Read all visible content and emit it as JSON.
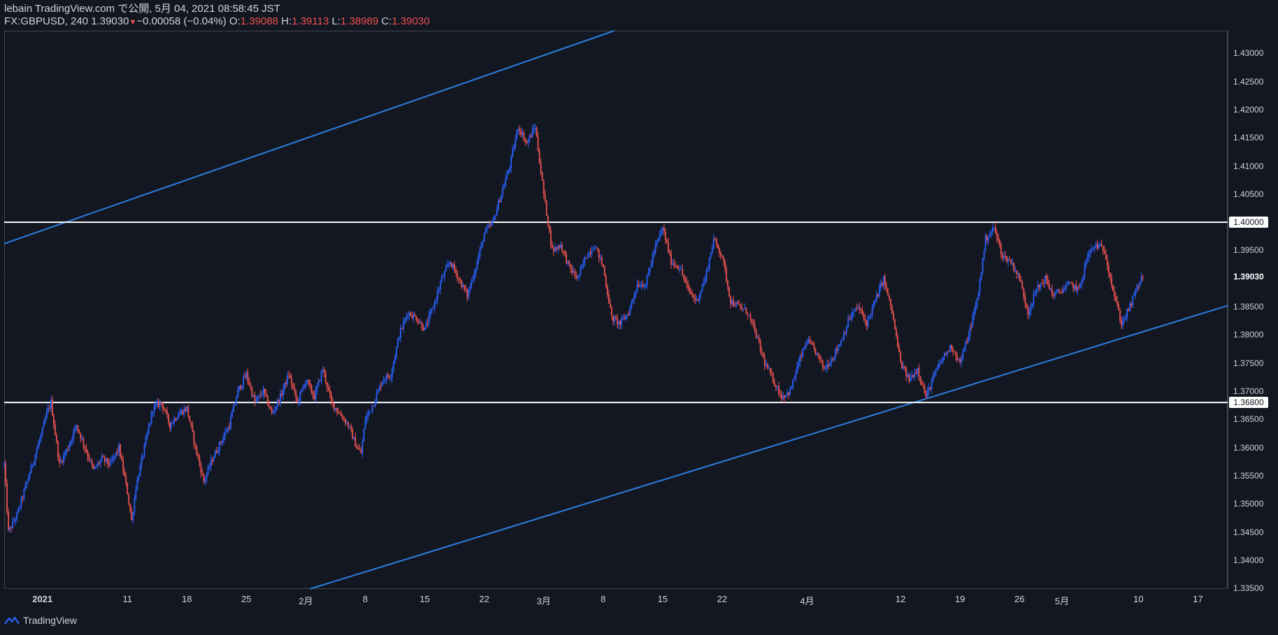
{
  "header": {
    "published": "lebain TradingView.com で公開, 5月 04, 2021 08:58:45 JST",
    "symbol": "FX:GBPUSD, 240 1.39030",
    "change": "−0.00058 (−0.04%)",
    "o_label": "O:",
    "o_value": "1.39088",
    "h_label": "H:",
    "h_value": "1.39113",
    "l_label": "L:",
    "l_value": "1.38989",
    "c_label": "C:",
    "c_value": "1.39030"
  },
  "footer": {
    "brand": "TradingView",
    "logo_icon": "tradingview-logo-icon"
  },
  "colors": {
    "background": "#131722",
    "up": "#2962ff",
    "down": "#ef5350",
    "line": "#2a7fe0",
    "hline": "#ffffff"
  },
  "chart_data": {
    "type": "candlestick",
    "symbol": "FX:GBPUSD",
    "interval": "240",
    "y_ticks": [
      "1.43000",
      "1.42500",
      "1.42000",
      "1.41500",
      "1.41000",
      "1.40500",
      "1.40000",
      "1.39500",
      "1.39030",
      "1.38500",
      "1.38000",
      "1.37500",
      "1.37000",
      "1.36800",
      "1.36500",
      "1.36000",
      "1.35500",
      "1.35000",
      "1.34500",
      "1.34000",
      "1.33500"
    ],
    "ylim": [
      1.3349,
      1.434
    ],
    "x_ticks": [
      {
        "label": "2021",
        "day": 0
      },
      {
        "label": "11",
        "day": 10
      },
      {
        "label": "18",
        "day": 17
      },
      {
        "label": "25",
        "day": 24
      },
      {
        "label": "2月",
        "day": 31
      },
      {
        "label": "8",
        "day": 38
      },
      {
        "label": "15",
        "day": 45
      },
      {
        "label": "22",
        "day": 52
      },
      {
        "label": "3月",
        "day": 59
      },
      {
        "label": "8",
        "day": 66
      },
      {
        "label": "15",
        "day": 73
      },
      {
        "label": "22",
        "day": 80
      },
      {
        "label": "4月",
        "day": 90
      },
      {
        "label": "12",
        "day": 101
      },
      {
        "label": "19",
        "day": 108
      },
      {
        "label": "26",
        "day": 115
      },
      {
        "label": "5月",
        "day": 120
      },
      {
        "label": "10",
        "day": 129
      },
      {
        "label": "17",
        "day": 136
      }
    ],
    "xlim": [
      -4.5,
      139.5
    ],
    "horizontal_levels": [
      {
        "price": 1.4,
        "label": "1.40000"
      },
      {
        "price": 1.368,
        "label": "1.36800"
      }
    ],
    "current_price": {
      "price": 1.3903,
      "label": "1.39030"
    },
    "trend_lines": [
      {
        "day1": -4.5,
        "price1": 1.3962,
        "day2": 67.3,
        "price2": 1.434
      },
      {
        "day1": 31.5,
        "price1": 1.3349,
        "day2": 139.5,
        "price2": 1.3852
      }
    ],
    "price_path": [
      [
        -4.5,
        1.357
      ],
      [
        -4,
        1.345
      ],
      [
        -3,
        1.348
      ],
      [
        -2,
        1.353
      ],
      [
        -1,
        1.358
      ],
      [
        0,
        1.363
      ],
      [
        0.5,
        1.366
      ],
      [
        1,
        1.368
      ],
      [
        2,
        1.357
      ],
      [
        3,
        1.36
      ],
      [
        4,
        1.364
      ],
      [
        5,
        1.36
      ],
      [
        6,
        1.356
      ],
      [
        7,
        1.358
      ],
      [
        8,
        1.357
      ],
      [
        9,
        1.36
      ],
      [
        10,
        1.352
      ],
      [
        10.5,
        1.347
      ],
      [
        11,
        1.353
      ],
      [
        12,
        1.36
      ],
      [
        13,
        1.367
      ],
      [
        14,
        1.368
      ],
      [
        15,
        1.364
      ],
      [
        16,
        1.366
      ],
      [
        17,
        1.367
      ],
      [
        18,
        1.36
      ],
      [
        19,
        1.354
      ],
      [
        20,
        1.358
      ],
      [
        21,
        1.361
      ],
      [
        22,
        1.364
      ],
      [
        23,
        1.37
      ],
      [
        24,
        1.373
      ],
      [
        25,
        1.368
      ],
      [
        26,
        1.37
      ],
      [
        27,
        1.366
      ],
      [
        28,
        1.369
      ],
      [
        29,
        1.373
      ],
      [
        30,
        1.368
      ],
      [
        31,
        1.372
      ],
      [
        32,
        1.369
      ],
      [
        33,
        1.374
      ],
      [
        34,
        1.368
      ],
      [
        35,
        1.366
      ],
      [
        36,
        1.364
      ],
      [
        37,
        1.36
      ],
      [
        37.5,
        1.359
      ],
      [
        38,
        1.365
      ],
      [
        39,
        1.368
      ],
      [
        40,
        1.372
      ],
      [
        41,
        1.373
      ],
      [
        42,
        1.38
      ],
      [
        43,
        1.384
      ],
      [
        44,
        1.383
      ],
      [
        45,
        1.381
      ],
      [
        46,
        1.385
      ],
      [
        47,
        1.39
      ],
      [
        48,
        1.393
      ],
      [
        49,
        1.39
      ],
      [
        50,
        1.387
      ],
      [
        51,
        1.392
      ],
      [
        52,
        1.398
      ],
      [
        53,
        1.4
      ],
      [
        54,
        1.405
      ],
      [
        55,
        1.41
      ],
      [
        56,
        1.417
      ],
      [
        57,
        1.414
      ],
      [
        58,
        1.417
      ],
      [
        59,
        1.405
      ],
      [
        60,
        1.395
      ],
      [
        61,
        1.396
      ],
      [
        62,
        1.392
      ],
      [
        63,
        1.39
      ],
      [
        64,
        1.394
      ],
      [
        65,
        1.396
      ],
      [
        66,
        1.392
      ],
      [
        67,
        1.383
      ],
      [
        68,
        1.382
      ],
      [
        69,
        1.384
      ],
      [
        70,
        1.389
      ],
      [
        71,
        1.389
      ],
      [
        72,
        1.395
      ],
      [
        73,
        1.399
      ],
      [
        74,
        1.393
      ],
      [
        75,
        1.392
      ],
      [
        76,
        1.388
      ],
      [
        77,
        1.386
      ],
      [
        78,
        1.39
      ],
      [
        79,
        1.397
      ],
      [
        80,
        1.394
      ],
      [
        81,
        1.386
      ],
      [
        82,
        1.385
      ],
      [
        83,
        1.384
      ],
      [
        84,
        1.38
      ],
      [
        85,
        1.375
      ],
      [
        86,
        1.372
      ],
      [
        87,
        1.369
      ],
      [
        88,
        1.37
      ],
      [
        89,
        1.375
      ],
      [
        90,
        1.379
      ],
      [
        91,
        1.377
      ],
      [
        92,
        1.374
      ],
      [
        93,
        1.376
      ],
      [
        94,
        1.379
      ],
      [
        95,
        1.383
      ],
      [
        96,
        1.385
      ],
      [
        97,
        1.382
      ],
      [
        98,
        1.386
      ],
      [
        99,
        1.39
      ],
      [
        100,
        1.384
      ],
      [
        101,
        1.375
      ],
      [
        102,
        1.372
      ],
      [
        103,
        1.374
      ],
      [
        104,
        1.369
      ],
      [
        105,
        1.373
      ],
      [
        106,
        1.376
      ],
      [
        107,
        1.378
      ],
      [
        108,
        1.375
      ],
      [
        109,
        1.38
      ],
      [
        110,
        1.386
      ],
      [
        111,
        1.397
      ],
      [
        112,
        1.399
      ],
      [
        113,
        1.394
      ],
      [
        114,
        1.393
      ],
      [
        115,
        1.39
      ],
      [
        116,
        1.384
      ],
      [
        117,
        1.388
      ],
      [
        118,
        1.39
      ],
      [
        119,
        1.387
      ],
      [
        120,
        1.388
      ],
      [
        121,
        1.389
      ],
      [
        122,
        1.388
      ],
      [
        123,
        1.394
      ],
      [
        124,
        1.396
      ],
      [
        125,
        1.395
      ],
      [
        126,
        1.388
      ],
      [
        127,
        1.382
      ],
      [
        128,
        1.385
      ],
      [
        129,
        1.389
      ],
      [
        129.5,
        1.3903
      ]
    ]
  }
}
